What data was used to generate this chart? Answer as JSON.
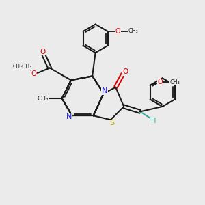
{
  "bg_color": "#ebebeb",
  "bond_color": "#1a1a1a",
  "N_color": "#1818e0",
  "S_color": "#c8a800",
  "O_color": "#dd0000",
  "H_color": "#30a898",
  "figsize": [
    3.0,
    3.0
  ],
  "dpi": 100,
  "xlim": [
    0,
    10
  ],
  "ylim": [
    0,
    10
  ]
}
